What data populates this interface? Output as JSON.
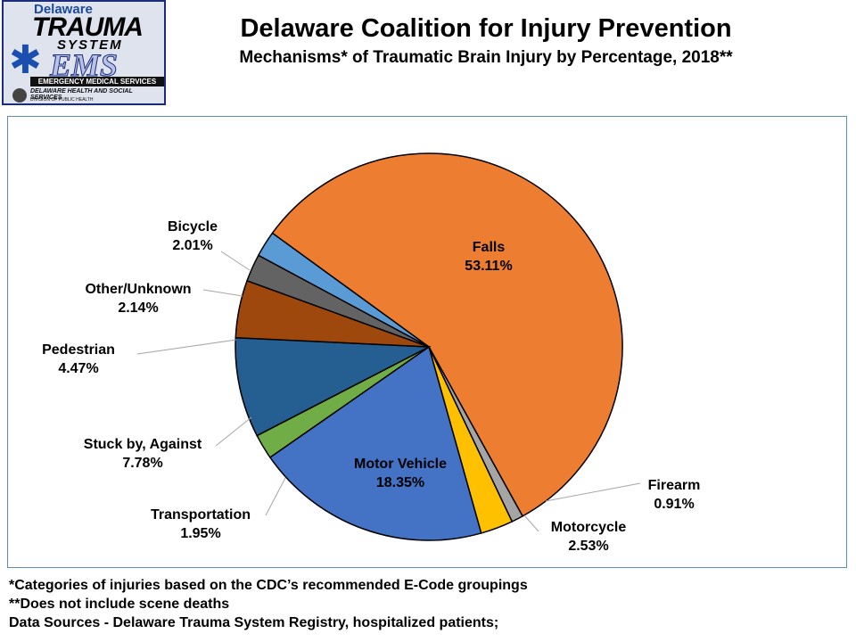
{
  "logo": {
    "line1": "Delaware",
    "line2": "TRAUMA",
    "line3": "SYSTEM",
    "line4": "EMS",
    "banner": "EMERGENCY MEDICAL SERVICES",
    "dept": "DELAWARE HEALTH AND SOCIAL SERVICES",
    "division": "DIVISION OF PUBLIC HEALTH",
    "star_icon": "star-of-life-icon"
  },
  "header": {
    "title": "Delaware Coalition for Injury Prevention",
    "subtitle": "Mechanisms* of Traumatic Brain Injury by Percentage, 2018**"
  },
  "chart_data": {
    "type": "pie",
    "title": "Mechanisms* of Traumatic Brain Injury by Percentage, 2018**",
    "unit": "%",
    "slices": [
      {
        "name": "Falls",
        "value": 53.11,
        "label": "53.11%",
        "color": "#ED7D31"
      },
      {
        "name": "Firearm",
        "value": 0.91,
        "label": "0.91%",
        "color": "#A5A5A5"
      },
      {
        "name": "Motorcycle",
        "value": 2.53,
        "label": "2.53%",
        "color": "#FFC000"
      },
      {
        "name": "Motor Vehicle",
        "value": 18.35,
        "label": "18.35%",
        "color": "#4472C4"
      },
      {
        "name": "Transportation",
        "value": 1.95,
        "label": "1.95%",
        "color": "#70AD47"
      },
      {
        "name": "Stuck by, Against",
        "value": 7.78,
        "label": "7.78%",
        "color": "#255E91"
      },
      {
        "name": "Pedestrian",
        "value": 4.47,
        "label": "4.47%",
        "color": "#9E480E"
      },
      {
        "name": "Other/Unknown",
        "value": 2.14,
        "label": "2.14%",
        "color": "#636363"
      },
      {
        "name": "Bicycle",
        "value": 2.01,
        "label": "2.01%",
        "color": "#5B9BD5"
      }
    ]
  },
  "footnotes": [
    "*Categories of injuries based on the CDC’s recommended E-Code groupings",
    "**Does not include scene deaths",
    "Data Sources - Delaware Trauma System Registry, hospitalized patients;"
  ]
}
